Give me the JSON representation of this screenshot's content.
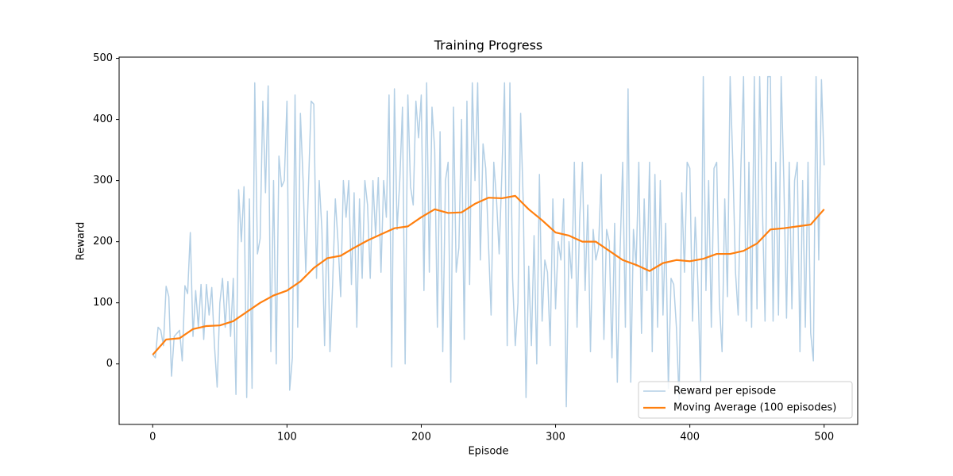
{
  "chart_data": {
    "type": "line",
    "title": "Training Progress",
    "xlabel": "Episode",
    "ylabel": "Reward",
    "xlim": [
      -25,
      525
    ],
    "ylim": [
      -99,
      502
    ],
    "xticks": [
      0,
      100,
      200,
      300,
      400,
      500
    ],
    "yticks": [
      0,
      100,
      200,
      300,
      400,
      500
    ],
    "grid": false,
    "legend": "lower right",
    "series": [
      {
        "name": "Reward per episode",
        "color": "#b3cfe5",
        "x": [
          0,
          2,
          4,
          6,
          8,
          10,
          12,
          14,
          16,
          18,
          20,
          22,
          24,
          26,
          28,
          30,
          32,
          34,
          36,
          38,
          40,
          42,
          44,
          46,
          48,
          50,
          52,
          54,
          56,
          58,
          60,
          62,
          64,
          66,
          68,
          70,
          72,
          74,
          76,
          78,
          80,
          82,
          84,
          86,
          88,
          90,
          92,
          94,
          96,
          98,
          100,
          102,
          104,
          106,
          108,
          110,
          112,
          114,
          116,
          118,
          120,
          122,
          124,
          126,
          128,
          130,
          132,
          134,
          136,
          138,
          140,
          142,
          144,
          146,
          148,
          150,
          152,
          154,
          156,
          158,
          160,
          162,
          164,
          166,
          168,
          170,
          172,
          174,
          176,
          178,
          180,
          182,
          184,
          186,
          188,
          190,
          192,
          194,
          196,
          198,
          200,
          202,
          204,
          206,
          208,
          210,
          212,
          214,
          216,
          218,
          220,
          222,
          224,
          226,
          228,
          230,
          232,
          234,
          236,
          238,
          240,
          242,
          244,
          246,
          248,
          250,
          252,
          254,
          256,
          258,
          260,
          262,
          264,
          266,
          268,
          270,
          272,
          274,
          276,
          278,
          280,
          282,
          284,
          286,
          288,
          290,
          292,
          294,
          296,
          298,
          300,
          302,
          304,
          306,
          308,
          310,
          312,
          314,
          316,
          318,
          320,
          322,
          324,
          326,
          328,
          330,
          332,
          334,
          336,
          338,
          340,
          342,
          344,
          346,
          348,
          350,
          352,
          354,
          356,
          358,
          360,
          362,
          364,
          366,
          368,
          370,
          372,
          374,
          376,
          378,
          380,
          382,
          384,
          386,
          388,
          390,
          392,
          394,
          396,
          398,
          400,
          402,
          404,
          406,
          408,
          410,
          412,
          414,
          416,
          418,
          420,
          422,
          424,
          426,
          428,
          430,
          432,
          434,
          436,
          438,
          440,
          442,
          444,
          446,
          448,
          450,
          452,
          454,
          456,
          458,
          460,
          462,
          464,
          466,
          468,
          470,
          472,
          474,
          476,
          478,
          480,
          482,
          484,
          486,
          488,
          490,
          492,
          494,
          496,
          498,
          500
        ],
        "values": [
          15,
          10,
          60,
          55,
          30,
          127,
          110,
          -20,
          45,
          50,
          55,
          5,
          128,
          115,
          215,
          45,
          120,
          60,
          130,
          40,
          130,
          80,
          125,
          30,
          -38,
          100,
          140,
          60,
          135,
          45,
          140,
          -50,
          285,
          200,
          290,
          -55,
          270,
          -40,
          460,
          180,
          205,
          430,
          280,
          455,
          20,
          300,
          0,
          340,
          290,
          300,
          430,
          -43,
          10,
          440,
          60,
          410,
          300,
          150,
          290,
          430,
          425,
          140,
          300,
          220,
          30,
          250,
          20,
          130,
          270,
          200,
          110,
          300,
          240,
          300,
          130,
          280,
          60,
          270,
          140,
          300,
          260,
          140,
          300,
          210,
          305,
          150,
          300,
          240,
          440,
          -5,
          450,
          220,
          300,
          420,
          0,
          440,
          290,
          260,
          430,
          370,
          440,
          120,
          460,
          150,
          420,
          350,
          60,
          380,
          20,
          300,
          330,
          -30,
          420,
          150,
          190,
          400,
          40,
          430,
          130,
          460,
          300,
          460,
          170,
          360,
          320,
          200,
          80,
          330,
          270,
          180,
          310,
          460,
          30,
          460,
          140,
          30,
          100,
          410,
          260,
          -55,
          160,
          30,
          210,
          0,
          310,
          70,
          170,
          150,
          30,
          270,
          90,
          200,
          170,
          270,
          -70,
          200,
          140,
          330,
          60,
          240,
          330,
          120,
          260,
          20,
          220,
          170,
          190,
          310,
          40,
          220,
          200,
          10,
          230,
          -30,
          180,
          330,
          60,
          450,
          -30,
          220,
          160,
          330,
          50,
          270,
          120,
          330,
          20,
          310,
          60,
          300,
          80,
          230,
          -40,
          140,
          130,
          60,
          -60,
          280,
          150,
          330,
          320,
          70,
          240,
          130,
          -30,
          470,
          120,
          300,
          60,
          320,
          330,
          100,
          20,
          270,
          110,
          470,
          330,
          150,
          80,
          320,
          470,
          70,
          330,
          60,
          470,
          90,
          470,
          260,
          70,
          470,
          470,
          70,
          330,
          80,
          470,
          300,
          75,
          330,
          90,
          300,
          330,
          20,
          300,
          60,
          330,
          50,
          5,
          470,
          170,
          465,
          325
        ]
      },
      {
        "name": "Moving Average (100 episodes)",
        "color": "#ff7f0e",
        "x": [
          0,
          10,
          20,
          30,
          40,
          50,
          60,
          70,
          80,
          90,
          100,
          110,
          120,
          130,
          140,
          150,
          160,
          170,
          180,
          190,
          200,
          210,
          220,
          230,
          240,
          250,
          260,
          270,
          280,
          290,
          300,
          310,
          320,
          330,
          340,
          350,
          360,
          370,
          380,
          390,
          400,
          410,
          420,
          430,
          440,
          450,
          460,
          470,
          480,
          490,
          500
        ],
        "values": [
          15,
          40,
          42,
          57,
          62,
          63,
          70,
          85,
          100,
          112,
          120,
          135,
          157,
          173,
          177,
          190,
          202,
          212,
          222,
          225,
          240,
          253,
          247,
          248,
          262,
          272,
          271,
          275,
          253,
          235,
          215,
          210,
          200,
          200,
          185,
          170,
          162,
          152,
          165,
          170,
          168,
          172,
          180,
          180,
          185,
          197,
          220,
          222,
          225,
          228,
          253
        ]
      }
    ]
  }
}
